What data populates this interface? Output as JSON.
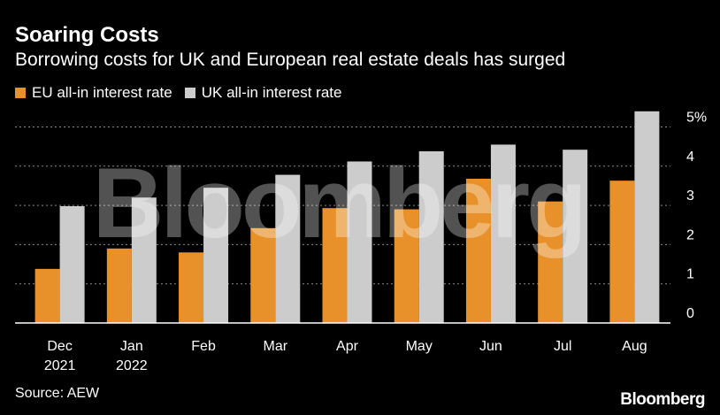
{
  "title": "Soaring Costs",
  "subtitle": "Borrowing costs for UK and European real estate deals has surged",
  "source": "Source: AEW",
  "brand": "Bloomberg",
  "watermark": "Bloomberg",
  "colors": {
    "eu": "#E8912A",
    "uk": "#CCCCCC",
    "grid": "#8a8a8a",
    "axis": "#ffffff"
  },
  "chart_data": {
    "type": "bar",
    "categories": [
      [
        "Dec",
        "2021"
      ],
      [
        "Jan",
        "2022"
      ],
      [
        "Feb"
      ],
      [
        "Mar"
      ],
      [
        "Apr"
      ],
      [
        "May"
      ],
      [
        "Jun"
      ],
      [
        "Jul"
      ],
      [
        "Aug"
      ]
    ],
    "series": [
      {
        "name": "EU all-in interest rate",
        "color": "#E8912A",
        "values": [
          1.38,
          1.9,
          1.8,
          2.42,
          2.93,
          2.9,
          3.68,
          3.1,
          3.63
        ]
      },
      {
        "name": "UK all-in interest rate",
        "color": "#CCCCCC",
        "values": [
          2.98,
          3.2,
          3.45,
          3.78,
          4.12,
          4.38,
          4.55,
          4.42,
          5.4
        ]
      }
    ],
    "y_ticks": [
      "0",
      "1",
      "2",
      "3",
      "4",
      "5%"
    ],
    "ylim": [
      0,
      5.5
    ],
    "grid": true,
    "y_axis_side": "right",
    "legend_position": "top-left"
  }
}
